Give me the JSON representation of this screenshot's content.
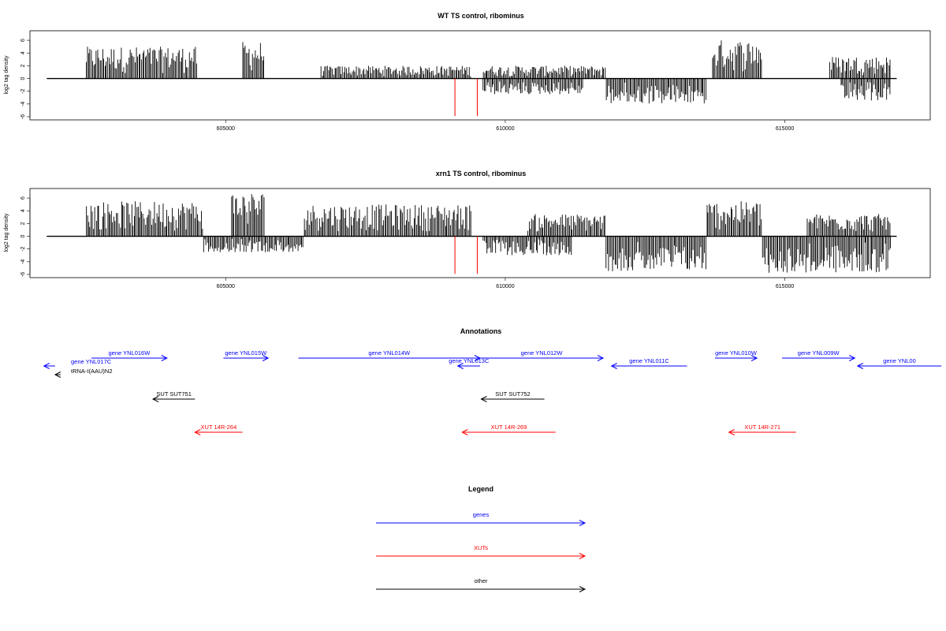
{
  "colors": {
    "genes": "#0000ff",
    "xuts": "#ff0000",
    "other": "#000000",
    "marker": "#ff0000"
  },
  "chart_data": [
    {
      "type": "bar",
      "title": "WT TS control, ribominus",
      "ylabel": "log2 tag density",
      "ylim": [
        -6,
        7
      ],
      "xlim": [
        601500,
        617600
      ],
      "yticks": [
        -6,
        -4,
        -2,
        0,
        2,
        4,
        6
      ],
      "xticks": [
        605000,
        610000,
        615000
      ],
      "xtick_labels": [
        "605000",
        "610000",
        "615000"
      ],
      "marker_lines": [
        609100,
        609500
      ],
      "plus_strand_regions": [
        {
          "start": 602500,
          "end": 604500,
          "max": 5.0
        },
        {
          "start": 605300,
          "end": 605700,
          "max": 5.8
        },
        {
          "start": 606700,
          "end": 609400,
          "max": 2.0
        },
        {
          "start": 609600,
          "end": 611800,
          "max": 2.0
        },
        {
          "start": 613700,
          "end": 614600,
          "max": 6.1
        },
        {
          "start": 615800,
          "end": 616900,
          "max": 3.5
        }
      ],
      "minus_strand_regions": [
        {
          "start": 609600,
          "end": 611400,
          "max": 2.5
        },
        {
          "start": 611800,
          "end": 613600,
          "max": 4.0
        },
        {
          "start": 616000,
          "end": 616900,
          "max": 3.5
        }
      ]
    },
    {
      "type": "bar",
      "title": "xrn1 TS control, ribominus",
      "ylabel": "log2 tag density",
      "ylim": [
        -6,
        7
      ],
      "xlim": [
        601500,
        617600
      ],
      "yticks": [
        -6,
        -4,
        -2,
        0,
        2,
        4,
        6
      ],
      "xticks": [
        605000,
        610000,
        615000
      ],
      "xtick_labels": [
        "605000",
        "610000",
        "615000"
      ],
      "marker_lines": [
        609100,
        609500
      ],
      "plus_strand_regions": [
        {
          "start": 602500,
          "end": 604600,
          "max": 5.5
        },
        {
          "start": 605100,
          "end": 605700,
          "max": 7.0
        },
        {
          "start": 606400,
          "end": 609400,
          "max": 5.0
        },
        {
          "start": 610400,
          "end": 611800,
          "max": 3.5
        },
        {
          "start": 613600,
          "end": 614600,
          "max": 5.5
        },
        {
          "start": 615400,
          "end": 616900,
          "max": 3.5
        }
      ],
      "minus_strand_regions": [
        {
          "start": 604600,
          "end": 606400,
          "max": 2.5
        },
        {
          "start": 609600,
          "end": 611200,
          "max": 3.0
        },
        {
          "start": 611800,
          "end": 613600,
          "max": 5.5
        },
        {
          "start": 614600,
          "end": 616900,
          "max": 5.8
        }
      ]
    }
  ],
  "annotations": {
    "title": "Annotations",
    "items": [
      {
        "label": "gene YNL017C",
        "color": "genes",
        "dir": "left",
        "start": 601750,
        "end": 601950,
        "row": 0
      },
      {
        "label": "tRNA-I(AAU)N2",
        "color": "other",
        "dir": "left",
        "start": 601950,
        "end": 602050,
        "row": 1
      },
      {
        "label": "gene YNL016W",
        "color": "genes",
        "dir": "right",
        "start": 602600,
        "end": 603950,
        "row": -1
      },
      {
        "label": "gene YNL015W",
        "color": "genes",
        "dir": "right",
        "start": 604960,
        "end": 605760,
        "row": -1
      },
      {
        "label": "gene YNL014W",
        "color": "genes",
        "dir": "right",
        "start": 606300,
        "end": 609550,
        "row": -1
      },
      {
        "label": "gene YNL013C",
        "color": "genes",
        "dir": "left",
        "start": 609150,
        "end": 609550,
        "row": 0
      },
      {
        "label": "gene YNL012W",
        "color": "genes",
        "dir": "right",
        "start": 609550,
        "end": 611750,
        "row": -1
      },
      {
        "label": "gene YNL011C",
        "color": "genes",
        "dir": "left",
        "start": 611900,
        "end": 613250,
        "row": 0
      },
      {
        "label": "gene YNL010W",
        "color": "genes",
        "dir": "right",
        "start": 613750,
        "end": 614500,
        "row": -1
      },
      {
        "label": "gene YNL009W",
        "color": "genes",
        "dir": "right",
        "start": 614950,
        "end": 616250,
        "row": -1
      },
      {
        "label": "gene YNL00",
        "color": "genes",
        "dir": "left",
        "start": 616300,
        "end": 617800,
        "row": 0
      },
      {
        "label": "SUT SUT751",
        "color": "other",
        "dir": "left",
        "start": 603700,
        "end": 604450,
        "row": 3
      },
      {
        "label": "SUT SUT752",
        "color": "other",
        "dir": "left",
        "start": 609570,
        "end": 610700,
        "row": 3
      },
      {
        "label": "XUT 14R-264",
        "color": "xuts",
        "dir": "left",
        "start": 604450,
        "end": 605300,
        "row": 5
      },
      {
        "label": "XUT 14R-269",
        "color": "xuts",
        "dir": "left",
        "start": 609230,
        "end": 610900,
        "row": 5
      },
      {
        "label": "XUT 14R-271",
        "color": "xuts",
        "dir": "left",
        "start": 614000,
        "end": 615200,
        "row": 5
      }
    ]
  },
  "legend": {
    "title": "Legend",
    "items": [
      {
        "label": "genes",
        "color": "genes"
      },
      {
        "label": "XUTs",
        "color": "xuts"
      },
      {
        "label": "other",
        "color": "other"
      }
    ]
  }
}
